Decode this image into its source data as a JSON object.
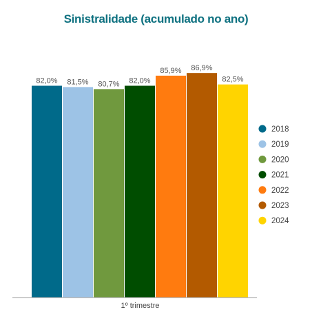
{
  "chart_data": {
    "type": "bar",
    "title": "Sinistralidade (acumulado no ano)",
    "categories": [
      "1º trimestre"
    ],
    "ylim": [
      0,
      100
    ],
    "grid": false,
    "legend_position": "right",
    "series": [
      {
        "name": "2018",
        "values": [
          82.0
        ],
        "label": "82,0%",
        "color": "#006a8a"
      },
      {
        "name": "2019",
        "values": [
          81.5
        ],
        "label": "81,5%",
        "color": "#9dc3e6"
      },
      {
        "name": "2020",
        "values": [
          80.7
        ],
        "label": "80,7%",
        "color": "#70993e"
      },
      {
        "name": "2021",
        "values": [
          82.0
        ],
        "label": "82,0%",
        "color": "#004d00"
      },
      {
        "name": "2022",
        "values": [
          85.9
        ],
        "label": "85,9%",
        "color": "#ff7b0f"
      },
      {
        "name": "2023",
        "values": [
          86.9
        ],
        "label": "86,9%",
        "color": "#b35a00"
      },
      {
        "name": "2024",
        "values": [
          82.5
        ],
        "label": "82,5%",
        "color": "#ffd400"
      }
    ]
  }
}
